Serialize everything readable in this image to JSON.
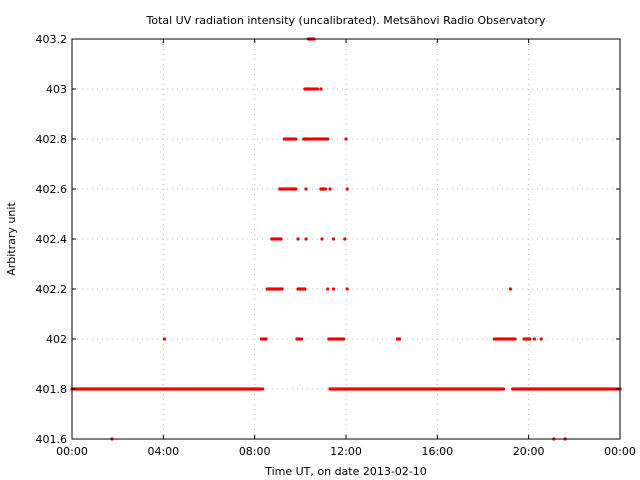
{
  "chart_data": {
    "type": "scatter",
    "title": "Total UV radiation intensity (uncalibrated). Metsähovi Radio Observatory",
    "xlabel": "Time UT, on date 2013-02-10",
    "ylabel": "Arbitrary unit",
    "x_unit": "hours UT",
    "xlim": [
      0,
      24
    ],
    "ylim": [
      401.6,
      403.2
    ],
    "x_ticks": [
      {
        "value": 0,
        "label": "00:00"
      },
      {
        "value": 4,
        "label": "04:00"
      },
      {
        "value": 8,
        "label": "08:00"
      },
      {
        "value": 12,
        "label": "12:00"
      },
      {
        "value": 16,
        "label": "16:00"
      },
      {
        "value": 20,
        "label": "20:00"
      },
      {
        "value": 24,
        "label": "00:00"
      }
    ],
    "y_ticks": [
      {
        "value": 401.6,
        "label": "401.6"
      },
      {
        "value": 401.8,
        "label": "401.8"
      },
      {
        "value": 402.0,
        "label": "402"
      },
      {
        "value": 402.2,
        "label": "402.2"
      },
      {
        "value": 402.4,
        "label": "402.4"
      },
      {
        "value": 402.6,
        "label": "402.6"
      },
      {
        "value": 402.8,
        "label": "402.8"
      },
      {
        "value": 403.0,
        "label": "403"
      },
      {
        "value": 403.2,
        "label": "403.2"
      }
    ],
    "grid": true,
    "marker_color": "#ee0000",
    "series": [
      {
        "runs": [
          {
            "y": 401.8,
            "x0": 0.0,
            "x1": 8.35
          },
          {
            "y": 401.8,
            "x0": 11.3,
            "x1": 18.9
          },
          {
            "y": 401.8,
            "x0": 19.3,
            "x1": 24.0
          },
          {
            "y": 402.0,
            "x0": 8.3,
            "x1": 8.5
          },
          {
            "y": 402.0,
            "x0": 9.85,
            "x1": 10.05
          },
          {
            "y": 402.0,
            "x0": 11.25,
            "x1": 11.9
          },
          {
            "y": 402.0,
            "x0": 14.25,
            "x1": 14.35
          },
          {
            "y": 402.0,
            "x0": 18.5,
            "x1": 19.4
          },
          {
            "y": 402.0,
            "x0": 19.8,
            "x1": 20.05
          },
          {
            "y": 402.2,
            "x0": 8.55,
            "x1": 9.2
          },
          {
            "y": 402.2,
            "x0": 9.9,
            "x1": 10.2
          },
          {
            "y": 402.4,
            "x0": 8.75,
            "x1": 9.15
          },
          {
            "y": 402.6,
            "x0": 9.1,
            "x1": 9.45
          },
          {
            "y": 402.6,
            "x0": 9.55,
            "x1": 9.8
          },
          {
            "y": 402.6,
            "x0": 10.9,
            "x1": 11.1
          },
          {
            "y": 402.8,
            "x0": 9.3,
            "x1": 9.8
          },
          {
            "y": 402.8,
            "x0": 10.15,
            "x1": 10.45
          },
          {
            "y": 402.8,
            "x0": 10.55,
            "x1": 10.95
          },
          {
            "y": 402.8,
            "x0": 11.0,
            "x1": 11.2
          },
          {
            "y": 403.0,
            "x0": 10.2,
            "x1": 10.45
          },
          {
            "y": 403.0,
            "x0": 10.55,
            "x1": 10.75
          },
          {
            "y": 403.2,
            "x0": 10.35,
            "x1": 10.6
          }
        ],
        "points": [
          {
            "x": 4.05,
            "y": 402.0
          },
          {
            "x": 20.25,
            "y": 402.0
          },
          {
            "x": 20.55,
            "y": 402.0
          },
          {
            "x": 19.2,
            "y": 402.2
          },
          {
            "x": 11.2,
            "y": 402.2
          },
          {
            "x": 11.45,
            "y": 402.2
          },
          {
            "x": 12.05,
            "y": 402.2
          },
          {
            "x": 9.9,
            "y": 402.4
          },
          {
            "x": 10.25,
            "y": 402.4
          },
          {
            "x": 10.95,
            "y": 402.4
          },
          {
            "x": 11.45,
            "y": 402.4
          },
          {
            "x": 11.95,
            "y": 402.4
          },
          {
            "x": 10.25,
            "y": 402.6
          },
          {
            "x": 11.3,
            "y": 402.6
          },
          {
            "x": 12.05,
            "y": 402.6
          },
          {
            "x": 12.0,
            "y": 402.8
          },
          {
            "x": 10.9,
            "y": 403.0
          },
          {
            "x": 1.75,
            "y": 401.6
          },
          {
            "x": 21.1,
            "y": 401.6
          },
          {
            "x": 21.6,
            "y": 401.6
          }
        ]
      }
    ]
  }
}
